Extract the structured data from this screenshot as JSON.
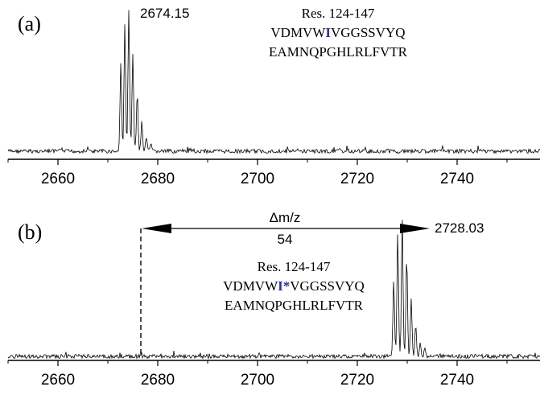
{
  "panels": {
    "a": {
      "label": "(a)",
      "peak_label": "2674.15",
      "residues_title": "Res. 124-147",
      "seq_line1_pre": "VDMVW",
      "seq_line1_mark": "I",
      "seq_line1_star": "",
      "seq_line1_post": "VGGSSVYQ",
      "seq_line2": "EAMNQPGHLRLFVTR"
    },
    "b": {
      "label": "(b)",
      "peak_label": "2728.03",
      "delta_label": "Δm/z",
      "delta_value": "54",
      "residues_title": "Res. 124-147",
      "seq_line1_pre": "VDMVW",
      "seq_line1_mark": "I",
      "seq_line1_star": "*",
      "seq_line1_post": "VGGSSVYQ",
      "seq_line2": "EAMNQPGHLRLFVTR"
    }
  },
  "colors": {
    "highlight": "#2e3192",
    "line": "#000000"
  },
  "chart_data": [
    {
      "type": "line",
      "panel": "a",
      "xlim": [
        2650,
        2750
      ],
      "xticks": [
        "2660",
        "2680",
        "2700",
        "2720",
        "2740"
      ],
      "grid": false,
      "peak_envelope": {
        "x": [
          2672.6,
          2673.4,
          2674.2,
          2675.0,
          2675.9,
          2676.8,
          2677.7,
          2678.6
        ],
        "y": [
          0.62,
          0.9,
          1.0,
          0.68,
          0.4,
          0.22,
          0.1,
          0.05
        ]
      },
      "annotation": {
        "x": 2674.15,
        "text": "2674.15"
      }
    },
    {
      "type": "line",
      "panel": "b",
      "xlim": [
        2650,
        2750
      ],
      "xticks": [
        "2660",
        "2680",
        "2700",
        "2720",
        "2740"
      ],
      "grid": false,
      "peak_envelope": {
        "x": [
          2727.3,
          2728.1,
          2729.0,
          2729.9,
          2730.8,
          2731.7,
          2732.6,
          2733.5
        ],
        "y": [
          0.55,
          0.88,
          1.0,
          0.72,
          0.42,
          0.22,
          0.1,
          0.05
        ]
      },
      "annotation": {
        "x": 2728.03,
        "text": "2728.03"
      },
      "delta_arrow": {
        "from": 2674.15,
        "to": 2728.03,
        "text": "Δm/z 54"
      }
    }
  ]
}
